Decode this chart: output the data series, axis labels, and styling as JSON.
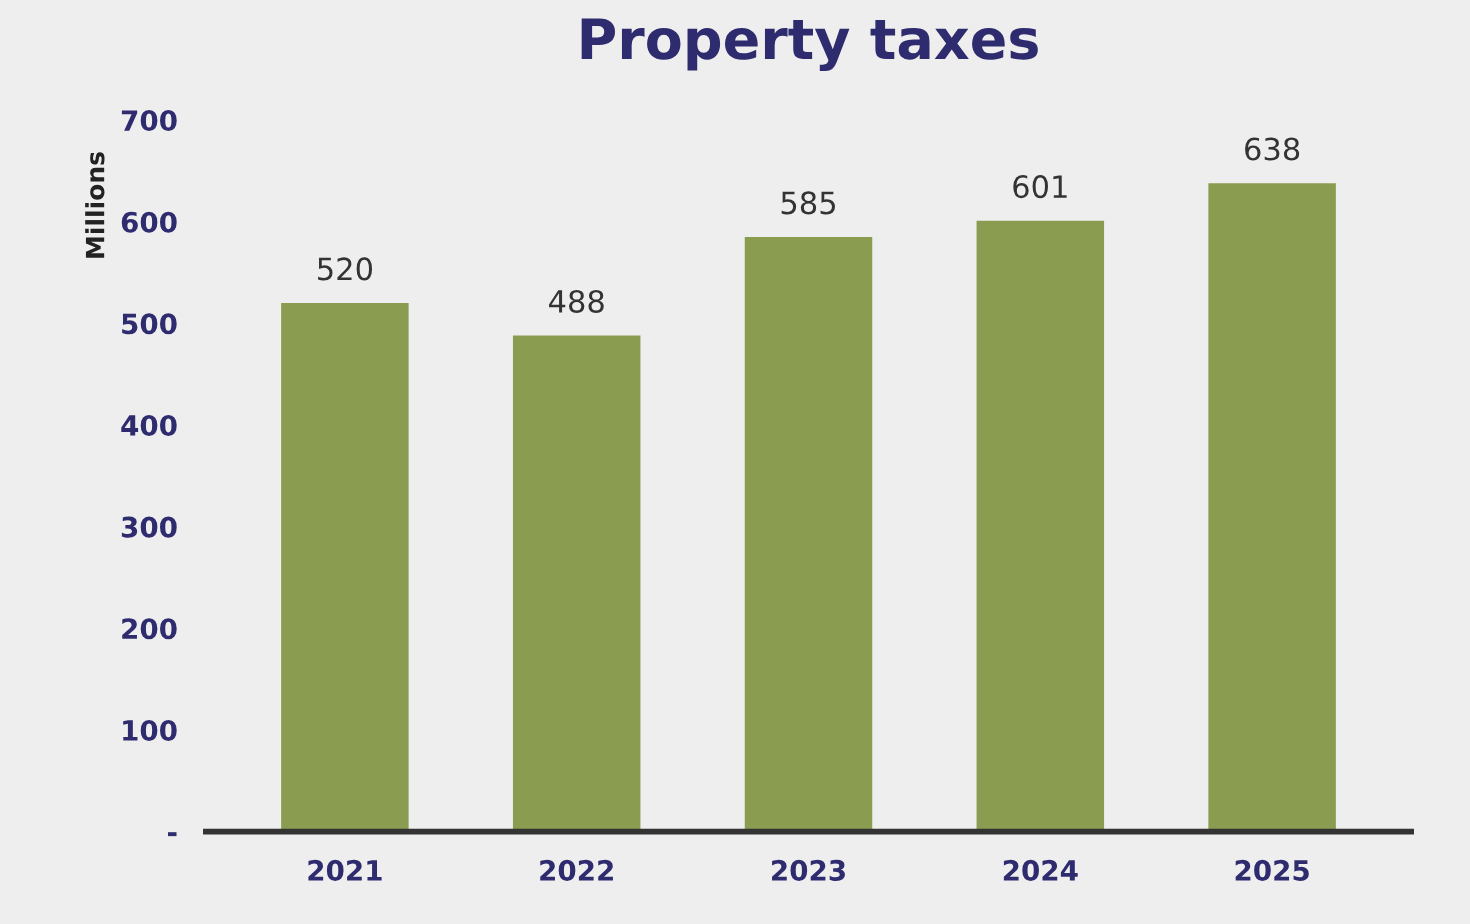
{
  "chart_data": {
    "type": "bar",
    "title": "Property taxes",
    "ylabel": "Millions",
    "categories": [
      "2021",
      "2022",
      "2023",
      "2024",
      "2025"
    ],
    "values": [
      520,
      488,
      585,
      601,
      638
    ],
    "color": "#8a9c4f",
    "ylim": [
      0,
      700
    ],
    "yticks": [
      {
        "value": 0,
        "label": "-"
      },
      100,
      200,
      300,
      400,
      500,
      600,
      700
    ],
    "grid": false,
    "data_labels": true
  }
}
